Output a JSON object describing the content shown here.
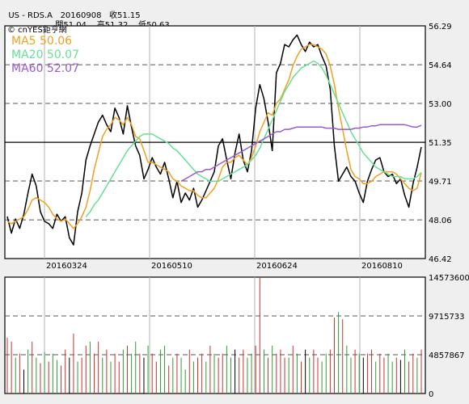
{
  "header": {
    "symbol": "US - RDS.A",
    "date": "20160908",
    "close_label": "收51.15",
    "open_label": "開51.04",
    "high_label": "高51.32",
    "low_label": "低50.63"
  },
  "watermark": "© cnYES鉅亨網",
  "chart_data": [
    {
      "type": "line",
      "panel": "price",
      "x_labels": [
        "20160324",
        "20160510",
        "20160624",
        "20160810"
      ],
      "y_ticks": [
        "56.29",
        "54.64",
        "53.00",
        "51.35",
        "49.71",
        "48.06",
        "46.42"
      ],
      "ylim": [
        46.42,
        56.29
      ],
      "reference_line": 51.35,
      "grid": true,
      "series": [
        {
          "name": "Price",
          "color": "#000000",
          "values": [
            48.2,
            47.5,
            48.1,
            47.7,
            48.3,
            49.2,
            50.0,
            49.5,
            48.4,
            48.0,
            47.9,
            47.7,
            48.3,
            48.0,
            48.2,
            47.3,
            47.0,
            48.4,
            49.2,
            50.6,
            51.2,
            51.7,
            52.2,
            52.5,
            52.1,
            51.8,
            52.8,
            52.4,
            51.7,
            52.9,
            52.0,
            51.2,
            50.8,
            49.8,
            50.2,
            50.7,
            50.3,
            50.0,
            50.5,
            49.8,
            49.0,
            49.7,
            48.8,
            49.2,
            48.9,
            49.4,
            48.6,
            48.9,
            49.3,
            49.7,
            50.1,
            51.2,
            51.5,
            50.6,
            49.8,
            50.9,
            51.7,
            50.6,
            50.1,
            51.0,
            52.8,
            53.8,
            53.2,
            52.2,
            51.0,
            54.3,
            54.7,
            55.5,
            55.4,
            55.7,
            55.9,
            55.5,
            55.2,
            55.6,
            55.4,
            55.5,
            55.0,
            54.6,
            53.6,
            51.2,
            49.7,
            50.0,
            50.3,
            49.9,
            49.7,
            49.2,
            48.8,
            49.7,
            50.2,
            50.6,
            50.7,
            50.1,
            49.9,
            50.0,
            49.6,
            49.8,
            49.1,
            48.6,
            49.6,
            50.3,
            51.15
          ]
        },
        {
          "name": "MA5",
          "label": "MA5 50.06",
          "color": "#f0a020",
          "values": [
            48.0,
            47.9,
            48.0,
            48.1,
            48.2,
            48.5,
            48.9,
            49.0,
            48.9,
            48.8,
            48.6,
            48.3,
            48.1,
            48.0,
            48.1,
            47.9,
            47.7,
            47.9,
            48.2,
            48.6,
            49.3,
            50.2,
            50.9,
            51.6,
            51.9,
            52.1,
            52.4,
            52.3,
            52.1,
            52.4,
            52.1,
            51.6,
            51.5,
            51.0,
            50.5,
            50.5,
            50.4,
            50.3,
            50.2,
            50.1,
            49.8,
            49.7,
            49.5,
            49.4,
            49.3,
            49.3,
            49.1,
            49.0,
            49.0,
            49.2,
            49.4,
            49.8,
            50.3,
            50.5,
            50.5,
            50.7,
            50.8,
            50.6,
            50.4,
            50.7,
            51.2,
            51.8,
            52.2,
            52.6,
            52.5,
            53.0,
            53.2,
            53.6,
            54.0,
            54.6,
            55.0,
            55.3,
            55.4,
            55.5,
            55.5,
            55.4,
            55.3,
            55.1,
            54.6,
            53.8,
            52.8,
            51.9,
            51.0,
            50.2,
            49.9,
            49.8,
            49.6,
            49.6,
            49.7,
            49.9,
            50.0,
            50.1,
            50.1,
            50.1,
            50.0,
            49.8,
            49.6,
            49.4,
            49.3,
            49.4,
            50.06
          ]
        },
        {
          "name": "MA20",
          "label": "MA20 50.07",
          "color": "#66e096",
          "values": [
            null,
            null,
            null,
            null,
            null,
            null,
            null,
            null,
            null,
            null,
            null,
            null,
            null,
            null,
            null,
            null,
            null,
            null,
            null,
            48.2,
            48.4,
            48.7,
            48.9,
            49.2,
            49.5,
            49.8,
            50.1,
            50.4,
            50.7,
            51.0,
            51.2,
            51.4,
            51.6,
            51.7,
            51.7,
            51.7,
            51.6,
            51.5,
            51.4,
            51.3,
            51.1,
            51.0,
            50.8,
            50.6,
            50.4,
            50.2,
            50.0,
            49.9,
            49.8,
            49.7,
            49.7,
            49.7,
            49.8,
            49.9,
            50.0,
            50.1,
            50.2,
            50.3,
            50.4,
            50.6,
            50.8,
            51.1,
            51.5,
            51.9,
            52.3,
            52.7,
            53.1,
            53.5,
            53.8,
            54.1,
            54.3,
            54.5,
            54.6,
            54.7,
            54.8,
            54.7,
            54.5,
            54.2,
            53.8,
            53.4,
            53.0,
            52.6,
            52.2,
            51.8,
            51.5,
            51.2,
            50.9,
            50.7,
            50.5,
            50.3,
            50.2,
            50.1,
            50.0,
            49.9,
            49.9,
            49.9,
            49.8,
            49.8,
            49.8,
            49.9,
            50.07
          ]
        },
        {
          "name": "MA60",
          "label": "MA60 52.07",
          "color": "#9a5ad0",
          "values": [
            null,
            null,
            null,
            null,
            null,
            null,
            null,
            null,
            null,
            null,
            null,
            null,
            null,
            null,
            null,
            null,
            null,
            null,
            null,
            null,
            null,
            null,
            null,
            null,
            null,
            null,
            null,
            null,
            null,
            null,
            null,
            null,
            null,
            null,
            null,
            null,
            null,
            null,
            null,
            null,
            null,
            null,
            49.7,
            49.8,
            49.9,
            50.0,
            50.1,
            50.1,
            50.2,
            50.2,
            50.3,
            50.4,
            50.5,
            50.6,
            50.7,
            50.8,
            50.9,
            51.0,
            51.1,
            51.2,
            51.3,
            51.4,
            51.5,
            51.6,
            51.7,
            51.8,
            51.8,
            51.9,
            51.9,
            51.95,
            52.0,
            52.0,
            52.0,
            52.0,
            52.0,
            52.0,
            52.0,
            51.95,
            51.95,
            51.95,
            51.9,
            51.9,
            51.9,
            51.9,
            51.95,
            51.95,
            52.0,
            52.0,
            52.05,
            52.05,
            52.1,
            52.1,
            52.1,
            52.1,
            52.1,
            52.1,
            52.1,
            52.05,
            52.0,
            52.0,
            52.07
          ]
        }
      ]
    },
    {
      "type": "bar",
      "panel": "volume",
      "y_ticks": [
        "14573600",
        "9715733",
        "4857867",
        "0"
      ],
      "ylim": [
        0,
        14573600
      ],
      "grid": true,
      "series": [
        {
          "name": "Volume",
          "colors": {
            "up": "#cc3030",
            "down": "#339933",
            "flat": "#000000"
          },
          "values": [
            7.0,
            6.5,
            4.5,
            5.0,
            3.0,
            5.5,
            6.5,
            4.5,
            3.8,
            5.2,
            4.0,
            5.0,
            4.2,
            3.5,
            5.5,
            4.5,
            7.5,
            4.0,
            4.5,
            6.0,
            6.5,
            5.0,
            6.5,
            4.5,
            5.5,
            4.0,
            5.0,
            4.0,
            5.5,
            6.0,
            5.0,
            6.5,
            5.0,
            4.5,
            6.0,
            5.0,
            4.0,
            5.5,
            6.0,
            3.5,
            4.5,
            5.0,
            4.5,
            3.0,
            5.5,
            4.0,
            4.5,
            5.0,
            4.0,
            6.0,
            5.0,
            4.5,
            5.0,
            6.0,
            4.5,
            5.5,
            4.5,
            5.5,
            4.5,
            5.0,
            6.0,
            14.57,
            5.5,
            4.5,
            6.0,
            5.0,
            5.5,
            4.5,
            4.5,
            6.0,
            5.0,
            4.0,
            5.5,
            4.5,
            5.5,
            4.5,
            4.0,
            5.0,
            5.5,
            9.5,
            10.2,
            9.3,
            6.0,
            4.5,
            5.5,
            5.0,
            4.5,
            5.0,
            5.5,
            4.0,
            5.0,
            4.5,
            5.0,
            4.0,
            4.5,
            4.2,
            5.5,
            4.0,
            5.0,
            4.5,
            5.5
          ],
          "directions": [
            "u",
            "u",
            "d",
            "u",
            "f",
            "d",
            "u",
            "d",
            "u",
            "d",
            "u",
            "d",
            "d",
            "u",
            "u",
            "f",
            "u",
            "d",
            "u",
            "u",
            "d",
            "u",
            "u",
            "d",
            "u",
            "d",
            "u",
            "u",
            "d",
            "u",
            "d",
            "d",
            "u",
            "f",
            "d",
            "u",
            "u",
            "d",
            "d",
            "u",
            "d",
            "u",
            "d",
            "d",
            "u",
            "d",
            "u",
            "u",
            "d",
            "u",
            "d",
            "u",
            "u",
            "d",
            "d",
            "f",
            "u",
            "u",
            "d",
            "d",
            "u",
            "u",
            "d",
            "u",
            "d",
            "u",
            "u",
            "u",
            "d",
            "u",
            "d",
            "u",
            "f",
            "d",
            "u",
            "u",
            "d",
            "d",
            "u",
            "u",
            "d",
            "u",
            "d",
            "d",
            "u",
            "d",
            "f",
            "u",
            "u",
            "d",
            "u",
            "u",
            "d",
            "d",
            "u",
            "f",
            "d",
            "u",
            "u",
            "d",
            "u"
          ]
        }
      ]
    }
  ]
}
